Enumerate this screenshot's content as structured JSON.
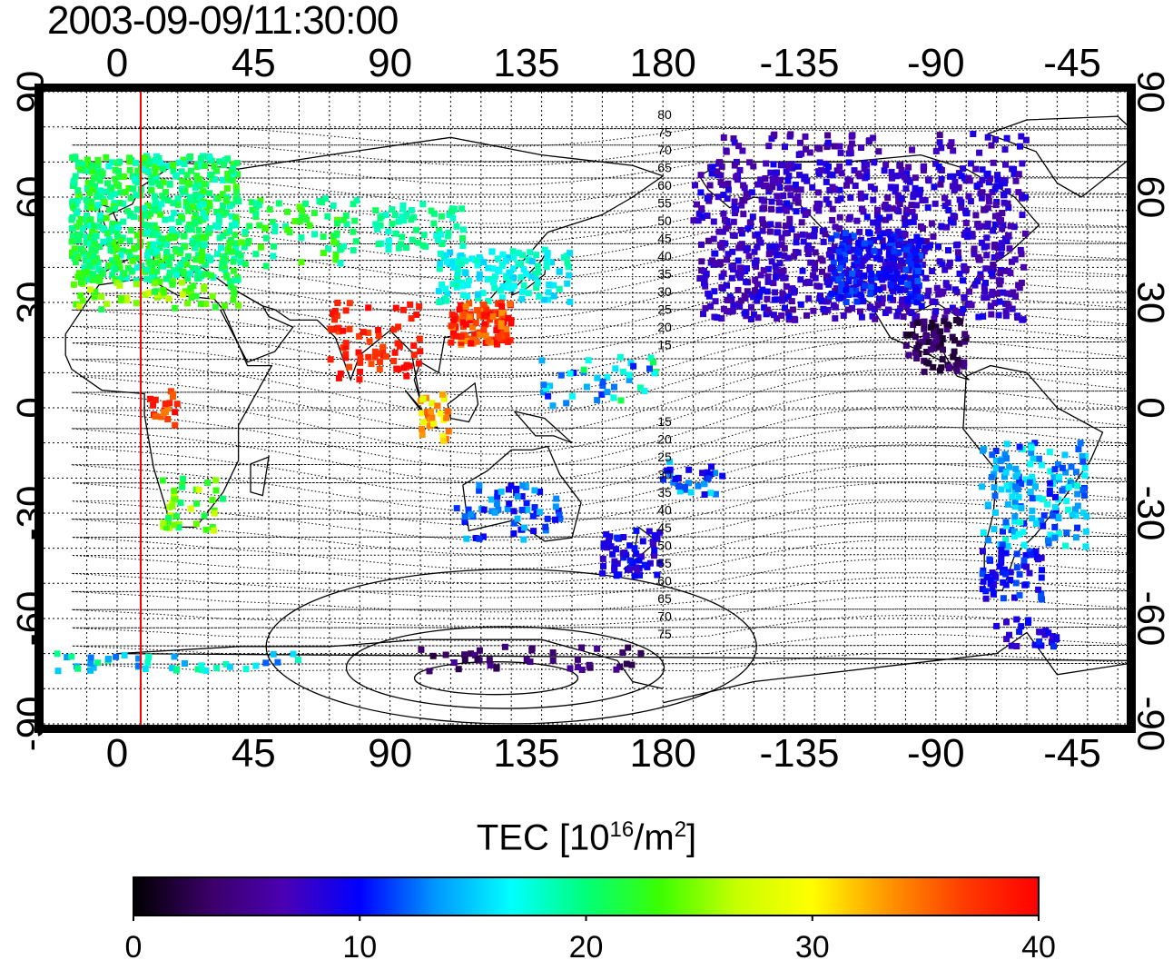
{
  "title": "2003-09-09/11:30:00",
  "map": {
    "top_lon_ticks": [
      "0",
      "45",
      "90",
      "135",
      "180",
      "-135",
      "-90",
      "-45"
    ],
    "bottom_lon_ticks": [
      "0",
      "45",
      "90",
      "135",
      "180",
      "-135",
      "-90",
      "-45"
    ],
    "lat_ticks": [
      "90",
      "60",
      "30",
      "0",
      "-30",
      "-60",
      "-90"
    ],
    "contour_labels_north": [
      "80",
      "75",
      "70",
      "65",
      "60",
      "55",
      "50",
      "45",
      "40",
      "35",
      "30",
      "25",
      "20",
      "15"
    ],
    "contour_labels_south": [
      "15",
      "20",
      "25",
      "30",
      "35",
      "40",
      "45",
      "50",
      "55",
      "60",
      "65",
      "70",
      "75"
    ],
    "colors": {
      "marker_line": "#ff0000",
      "frame": "#000000"
    }
  },
  "colorbar": {
    "label_main": "TEC  [10",
    "label_exp": "16",
    "label_mid": "/m",
    "label_exp2": "2",
    "label_end": "]",
    "ticks": [
      "0",
      "10",
      "20",
      "30",
      "40"
    ],
    "colormap": [
      "#000000",
      "#3a0066",
      "#4b00b4",
      "#0000ff",
      "#0096ff",
      "#00ffff",
      "#00ff78",
      "#3cff00",
      "#c8ff00",
      "#ffff00",
      "#ff9600",
      "#ff3c00",
      "#ff0000"
    ],
    "range": [
      0,
      40
    ]
  }
}
